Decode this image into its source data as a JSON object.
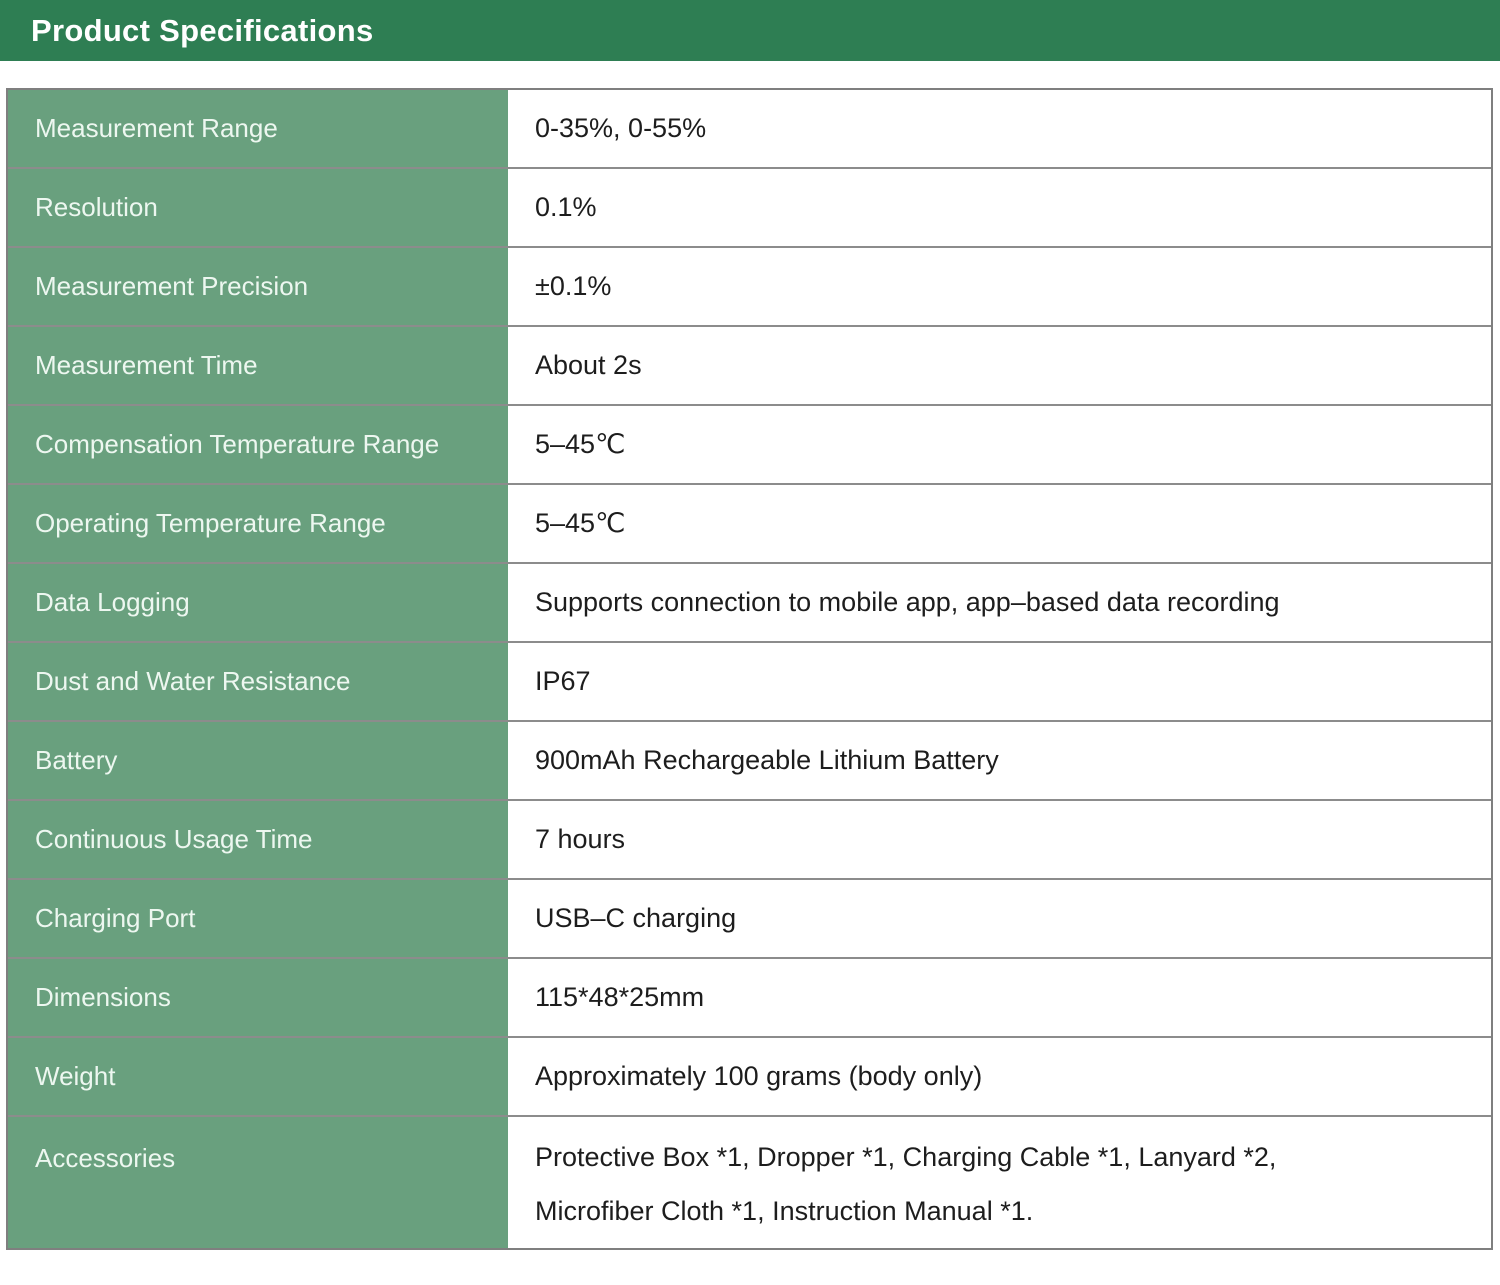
{
  "header": {
    "title": "Product Specifications"
  },
  "colors": {
    "header_bg": "#2e7e53",
    "label_column_bg": "#69a07e",
    "label_text": "#edf7f0",
    "value_text": "#1d1d1d",
    "row_divider": "rgba(0,0,0,0.45)"
  },
  "table": {
    "rows": [
      {
        "label": "Measurement Range",
        "value": "0-35%,  0-55%"
      },
      {
        "label": "Resolution",
        "value": "0.1%"
      },
      {
        "label": "Measurement Precision",
        "value": "±0.1%"
      },
      {
        "label": "Measurement Time",
        "value": "About 2s"
      },
      {
        "label": "Compensation Temperature Range",
        "value": "5–45℃"
      },
      {
        "label": "Operating Temperature Range",
        "value": "5–45℃"
      },
      {
        "label": "Data Logging",
        "value": "Supports connection to mobile app, app–based data recording"
      },
      {
        "label": "Dust and Water Resistance",
        "value": "IP67"
      },
      {
        "label": "Battery",
        "value": "900mAh Rechargeable Lithium Battery"
      },
      {
        "label": "Continuous Usage Time",
        "value": "7 hours"
      },
      {
        "label": "Charging Port",
        "value": "USB–C charging"
      },
      {
        "label": "Dimensions",
        "value": "115*48*25mm"
      },
      {
        "label": "Weight",
        "value": "Approximately 100 grams (body only)"
      },
      {
        "label": "Accessories",
        "value_lines": [
          "Protective Box *1, Dropper *1, Charging Cable *1, Lanyard *2,",
          "Microfiber Cloth *1, Instruction Manual *1."
        ]
      }
    ]
  }
}
